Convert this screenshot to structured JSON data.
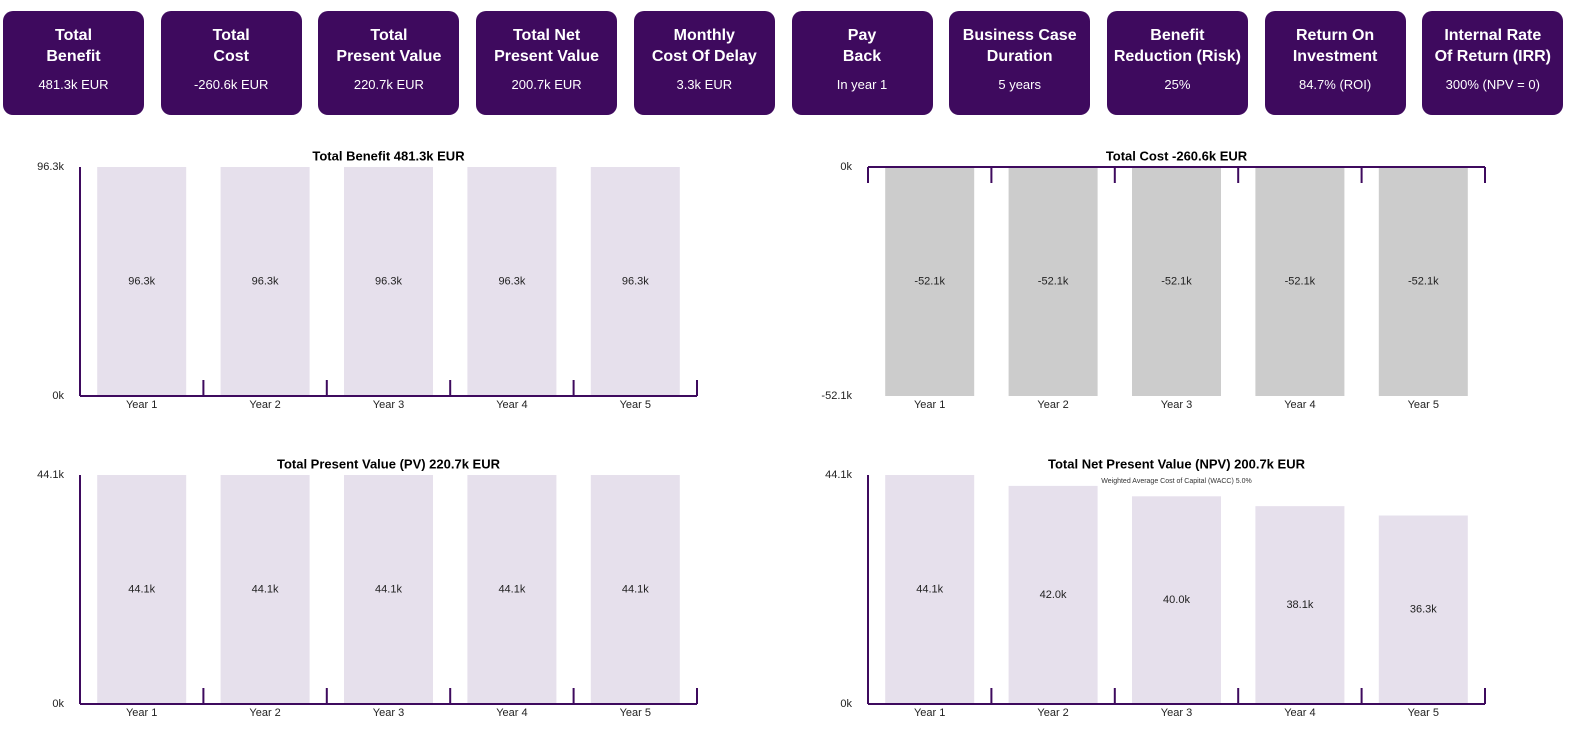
{
  "cards": [
    {
      "title": [
        "Total",
        "Benefit"
      ],
      "value": "481.3k EUR"
    },
    {
      "title": [
        "Total",
        "Cost"
      ],
      "value": "-260.6k EUR"
    },
    {
      "title": [
        "Total",
        "Present Value"
      ],
      "value": "220.7k EUR"
    },
    {
      "title": [
        "Total Net",
        "Present Value"
      ],
      "value": "200.7k EUR"
    },
    {
      "title": [
        "Monthly",
        "Cost Of Delay"
      ],
      "value": "3.3k EUR"
    },
    {
      "title": [
        "Pay",
        "Back"
      ],
      "value": "In year 1"
    },
    {
      "title": [
        "Business Case",
        "Duration"
      ],
      "value": "5 years"
    },
    {
      "title": [
        "Benefit",
        "Reduction (Risk)"
      ],
      "value": "25%"
    },
    {
      "title": [
        "Return On",
        "Investment"
      ],
      "value": "84.7% (ROI)"
    },
    {
      "title": [
        "Internal Rate",
        "Of Return (IRR)"
      ],
      "value": "300% (NPV = 0)"
    }
  ],
  "chart_data": [
    {
      "type": "bar",
      "title": "Total Benefit 481.3k EUR",
      "categories": [
        "Year 1",
        "Year 2",
        "Year 3",
        "Year 4",
        "Year 5"
      ],
      "values": [
        96.3,
        96.3,
        96.3,
        96.3,
        96.3
      ],
      "value_labels": [
        "96.3k",
        "96.3k",
        "96.3k",
        "96.3k",
        "96.3k"
      ],
      "color": "#e6e0ec",
      "ylim": [
        0,
        96.3
      ],
      "yticks": [
        {
          "value": 0,
          "label": "0k"
        },
        {
          "value": 96.3,
          "label": "96.3k"
        }
      ]
    },
    {
      "type": "bar",
      "title": "Total Cost -260.6k EUR",
      "categories": [
        "Year 1",
        "Year 2",
        "Year 3",
        "Year 4",
        "Year 5"
      ],
      "values": [
        -52.1,
        -52.1,
        -52.1,
        -52.1,
        -52.1
      ],
      "value_labels": [
        "-52.1k",
        "-52.1k",
        "-52.1k",
        "-52.1k",
        "-52.1k"
      ],
      "color": "#cccccc",
      "ylim": [
        -52.1,
        0
      ],
      "yticks": [
        {
          "value": -52.1,
          "label": "-52.1k"
        },
        {
          "value": 0,
          "label": "0k"
        }
      ]
    },
    {
      "type": "bar",
      "title": "Total Present Value (PV) 220.7k EUR",
      "categories": [
        "Year 1",
        "Year 2",
        "Year 3",
        "Year 4",
        "Year 5"
      ],
      "values": [
        44.1,
        44.1,
        44.1,
        44.1,
        44.1
      ],
      "value_labels": [
        "44.1k",
        "44.1k",
        "44.1k",
        "44.1k",
        "44.1k"
      ],
      "color": "#e6e0ec",
      "ylim": [
        0,
        44.1
      ],
      "yticks": [
        {
          "value": 0,
          "label": "0k"
        },
        {
          "value": 44.1,
          "label": "44.1k"
        }
      ]
    },
    {
      "type": "bar",
      "title": "Total Net Present Value (NPV) 200.7k EUR",
      "subtitle": "Weighted Average Cost of Capital (WACC) 5.0%",
      "categories": [
        "Year 1",
        "Year 2",
        "Year 3",
        "Year 4",
        "Year 5"
      ],
      "values": [
        44.1,
        42.0,
        40.0,
        38.1,
        36.3
      ],
      "value_labels": [
        "44.1k",
        "42.0k",
        "40.0k",
        "38.1k",
        "36.3k"
      ],
      "color": "#e6e0ec",
      "ylim": [
        0,
        44.1
      ],
      "yticks": [
        {
          "value": 0,
          "label": "0k"
        },
        {
          "value": 44.1,
          "label": "44.1k"
        }
      ]
    }
  ]
}
